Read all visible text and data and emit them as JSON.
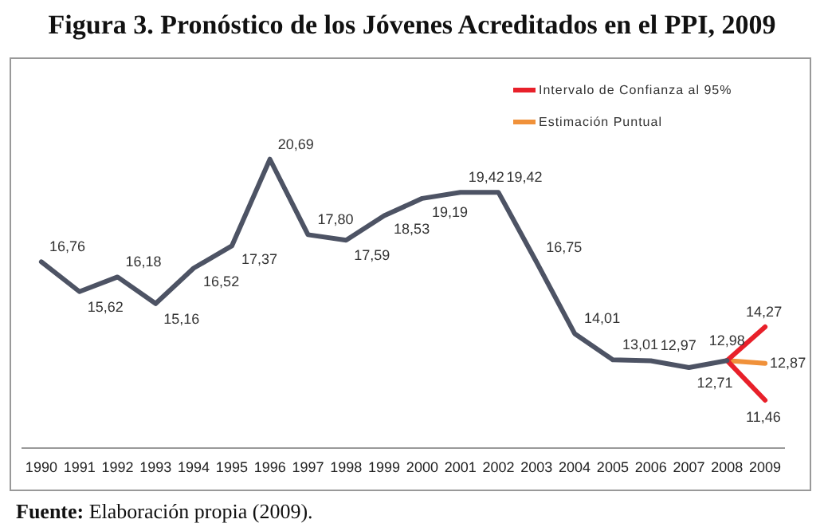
{
  "chart_data": {
    "type": "line",
    "title": "Figura 3. Pronóstico de los Jóvenes Acreditados en el PPI, 2009",
    "categories": [
      "1990",
      "1991",
      "1992",
      "1993",
      "1994",
      "1995",
      "1996",
      "1997",
      "1998",
      "1999",
      "2000",
      "2001",
      "2002",
      "2003",
      "2004",
      "2005",
      "2006",
      "2007",
      "2008",
      "2009"
    ],
    "series": [
      {
        "color": "#4d5364",
        "values": [
          16.76,
          15.62,
          16.18,
          15.16,
          16.52,
          17.37,
          20.69,
          17.8,
          17.59,
          18.53,
          19.19,
          19.42,
          19.42,
          16.75,
          14.01,
          13.01,
          12.97,
          12.71,
          12.98,
          null
        ],
        "value_labels": [
          "16,76",
          "15,62",
          "16,18",
          "15,16",
          "16,52",
          "17,37",
          "20,69",
          "17,80",
          "17,59",
          "18,53",
          "19,19",
          "19,42",
          "19,42",
          "16,75",
          "14,01",
          "13,01",
          "12,97",
          "12,71",
          "12,98",
          null
        ]
      },
      {
        "name": "Intervalo de Confianza al 95%",
        "color": "#e8202a",
        "values": [
          null,
          null,
          null,
          null,
          null,
          null,
          null,
          null,
          null,
          null,
          null,
          null,
          null,
          null,
          null,
          null,
          null,
          null,
          12.98,
          14.27
        ],
        "value_labels": [
          null,
          null,
          null,
          null,
          null,
          null,
          null,
          null,
          null,
          null,
          null,
          null,
          null,
          null,
          null,
          null,
          null,
          null,
          null,
          "14,27"
        ]
      },
      {
        "color": "#e8202a",
        "values": [
          null,
          null,
          null,
          null,
          null,
          null,
          null,
          null,
          null,
          null,
          null,
          null,
          null,
          null,
          null,
          null,
          null,
          null,
          12.98,
          11.46
        ],
        "value_labels": [
          null,
          null,
          null,
          null,
          null,
          null,
          null,
          null,
          null,
          null,
          null,
          null,
          null,
          null,
          null,
          null,
          null,
          null,
          null,
          "11,46"
        ]
      },
      {
        "name": "Estimación Puntual",
        "color": "#f0913a",
        "values": [
          null,
          null,
          null,
          null,
          null,
          null,
          null,
          null,
          null,
          null,
          null,
          null,
          null,
          null,
          null,
          null,
          null,
          null,
          12.98,
          12.87
        ],
        "value_labels": [
          null,
          null,
          null,
          null,
          null,
          null,
          null,
          null,
          null,
          null,
          null,
          null,
          null,
          null,
          null,
          null,
          null,
          null,
          null,
          "12,87"
        ]
      }
    ],
    "legend": "top right",
    "grid": false,
    "marker": "none",
    "line_style": "solid",
    "tick_labels": "x",
    "annotations": [
      "Fuente: Elaboración propia (2009)."
    ]
  }
}
